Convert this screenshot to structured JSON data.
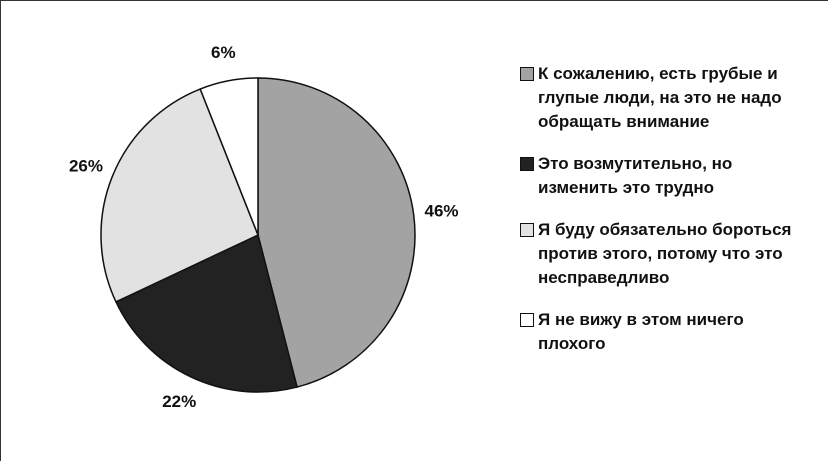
{
  "chart_data": {
    "type": "pie",
    "categories": [
      "К сожалению, есть грубые и глупые люди, на это не надо обращать внимание",
      "Это возмутительно, но изменить это трудно",
      "Я буду обязательно бороться против этого, потому что это несправедливо",
      "Я не вижу в этом ничего плохого"
    ],
    "values": [
      46,
      22,
      26,
      6
    ],
    "value_labels": [
      "46%",
      "22%",
      "26%",
      "6%"
    ],
    "colors": [
      "#a3a3a3",
      "#222222",
      "#e2e2e2",
      "#ffffff"
    ]
  }
}
